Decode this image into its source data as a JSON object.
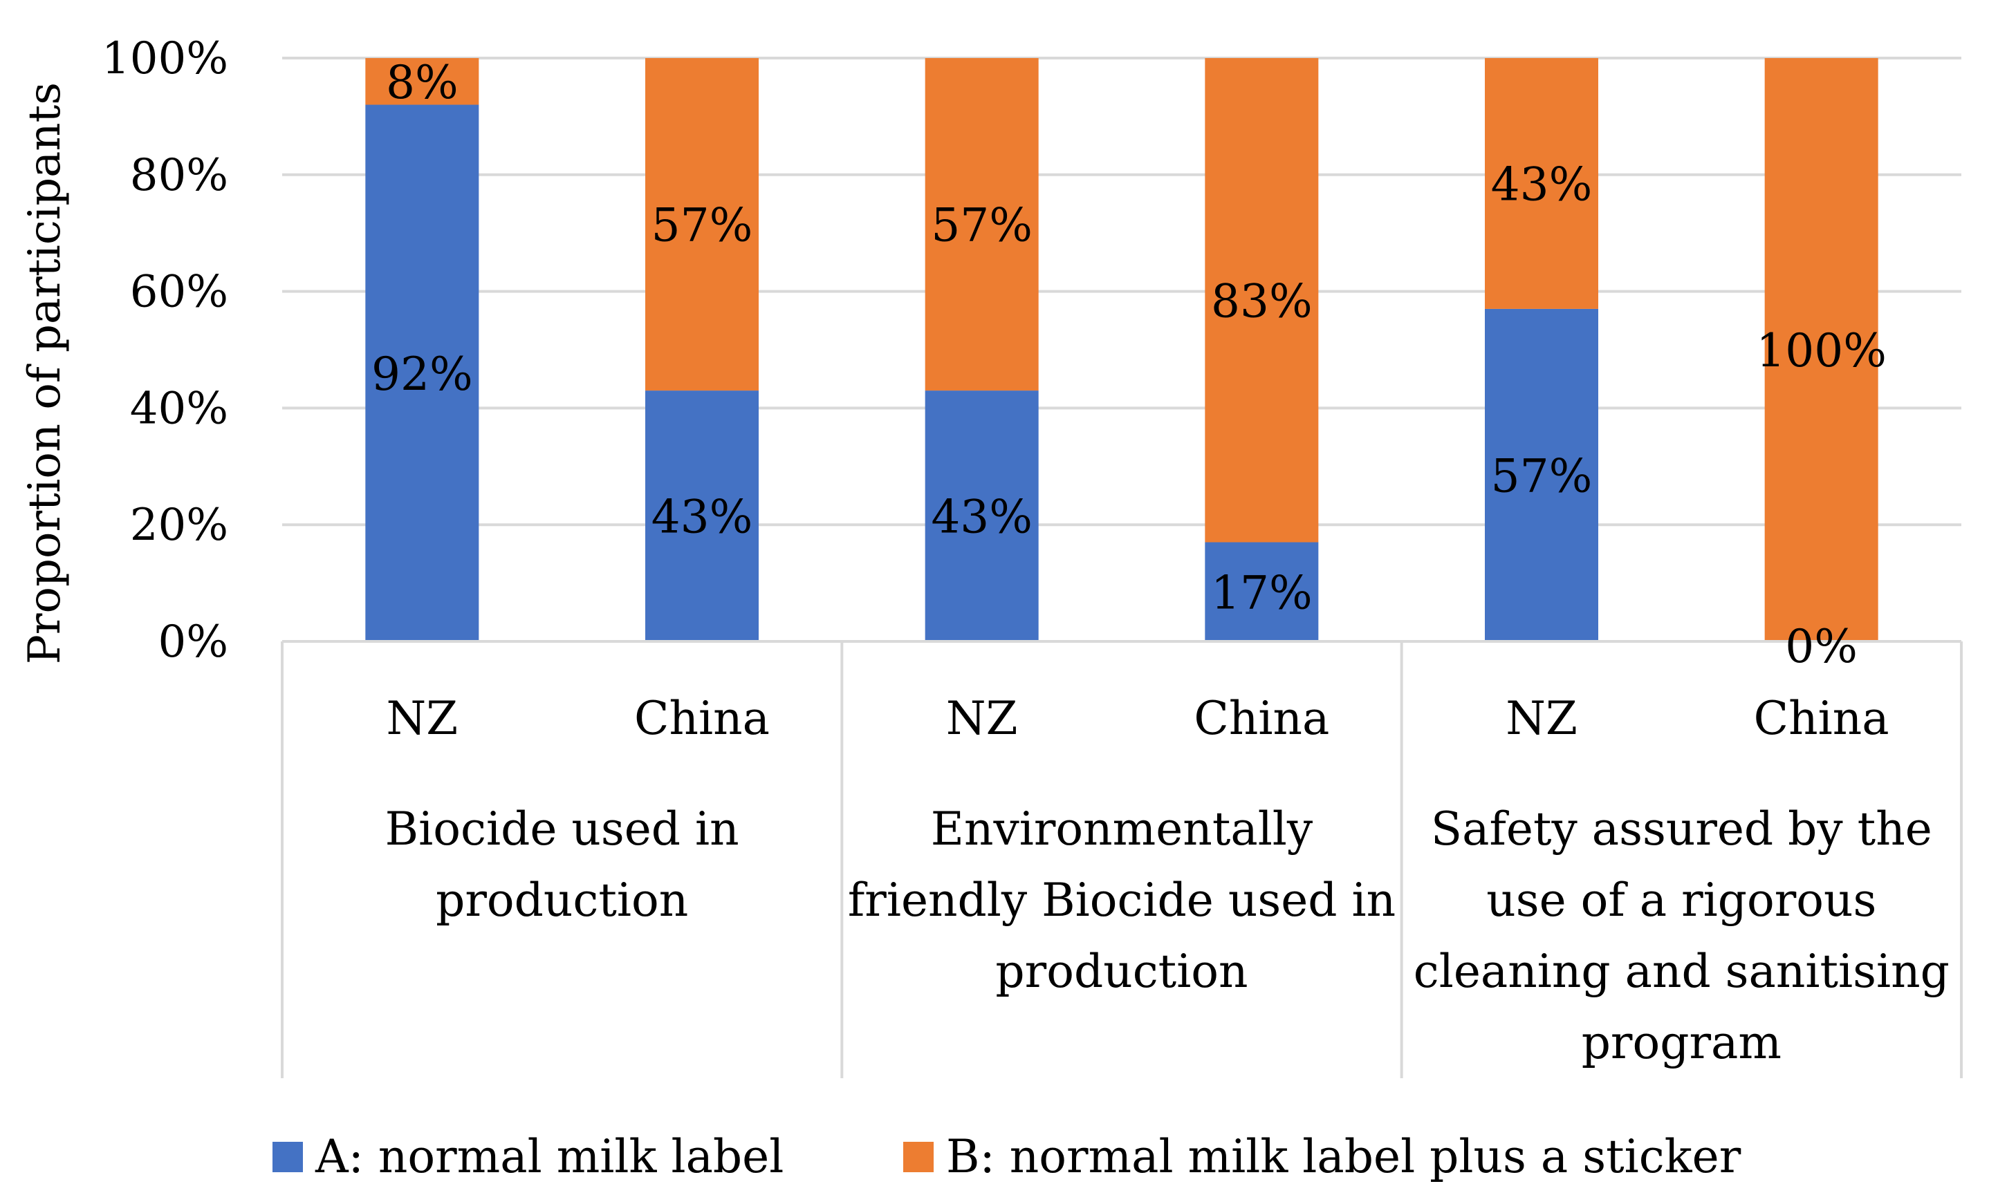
{
  "chart_data": {
    "type": "bar",
    "stacked": true,
    "ylabel": "Proportion of participants",
    "ylim": [
      0,
      100
    ],
    "yticks": [
      "0%",
      "20%",
      "40%",
      "60%",
      "80%",
      "100%"
    ],
    "grid": true,
    "legend_position": "bottom",
    "groups": [
      {
        "label_lines": [
          "Biocide used in",
          "production"
        ],
        "categories": [
          "NZ",
          "China"
        ]
      },
      {
        "label_lines": [
          "Environmentally",
          "friendly Biocide used in",
          "production"
        ],
        "categories": [
          "NZ",
          "China"
        ]
      },
      {
        "label_lines": [
          "Safety assured by the",
          "use of a rigorous",
          "cleaning and sanitising",
          "program"
        ],
        "categories": [
          "NZ",
          "China"
        ]
      }
    ],
    "series": [
      {
        "name": "A: normal milk label",
        "color": "#4472C4",
        "values": [
          92,
          43,
          43,
          17,
          57,
          0
        ],
        "labels": [
          "92%",
          "43%",
          "43%",
          "17%",
          "57%",
          "0%"
        ]
      },
      {
        "name": "B: normal milk label plus a sticker",
        "color": "#ED7D31",
        "values": [
          8,
          57,
          57,
          83,
          43,
          100
        ],
        "labels": [
          "8%",
          "57%",
          "57%",
          "83%",
          "43%",
          "100%"
        ]
      }
    ]
  }
}
